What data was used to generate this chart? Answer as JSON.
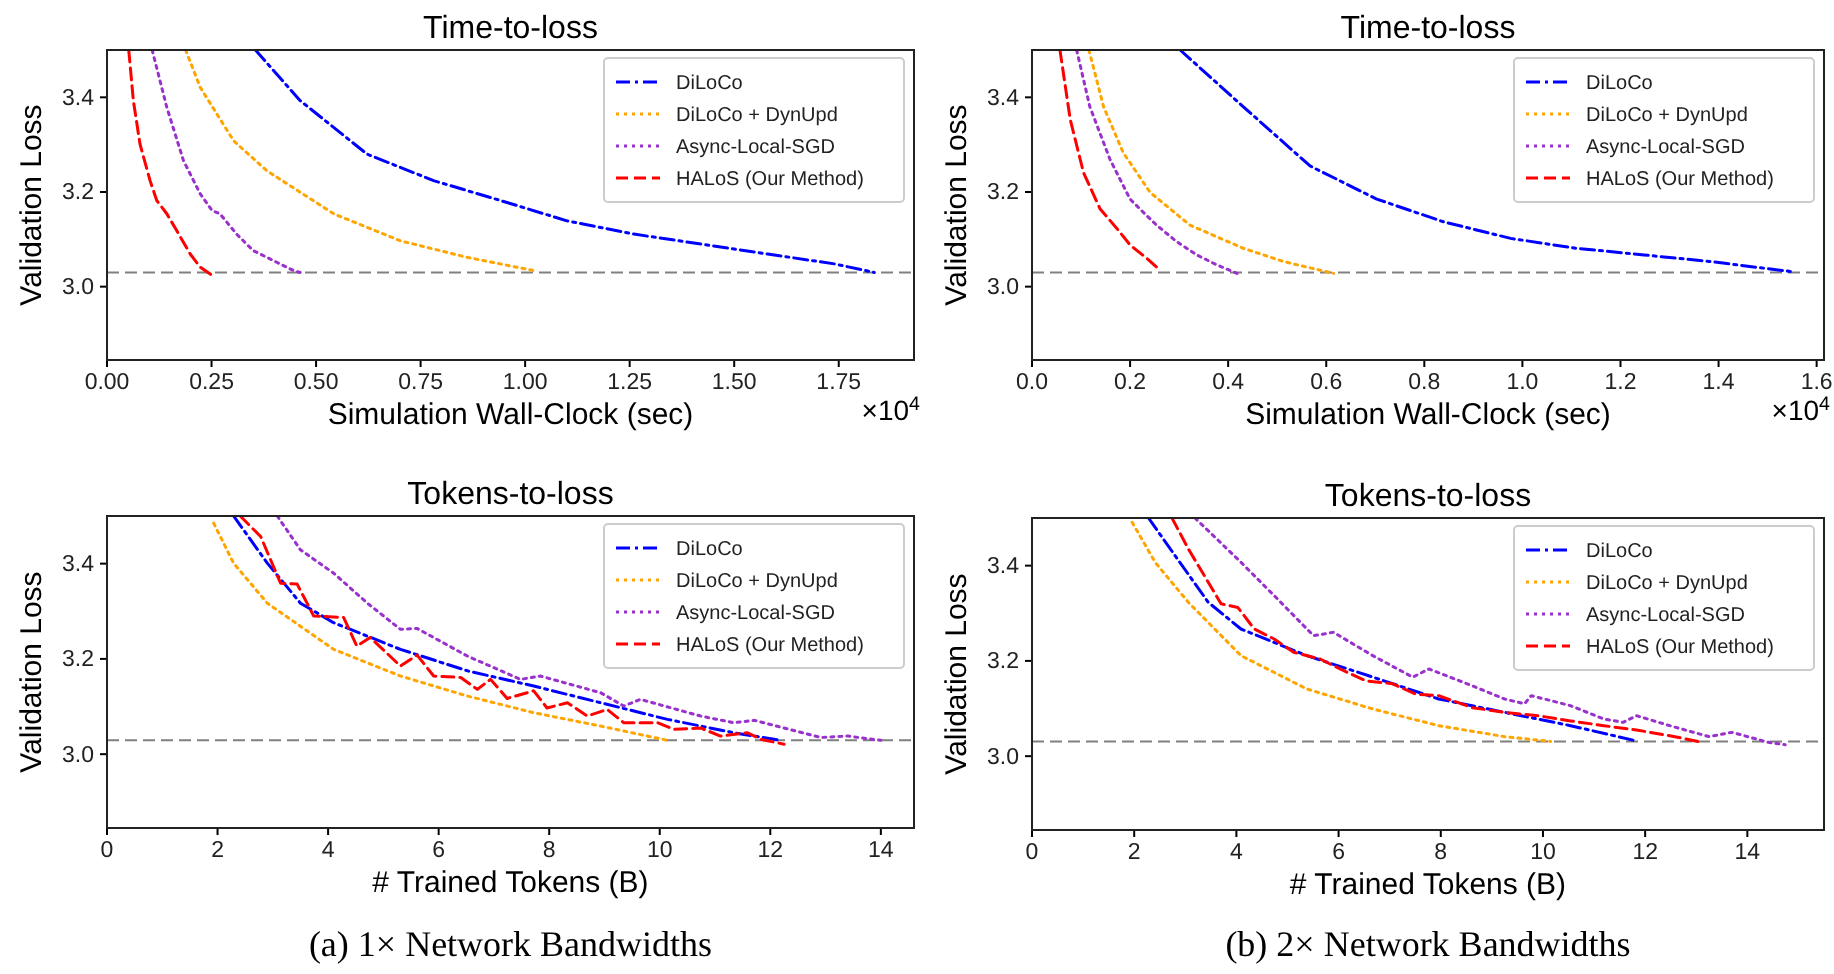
{
  "chart_data": [
    {
      "type": "line",
      "title": "Time-to-loss",
      "xlabel": "Simulation Wall-Clock (sec)",
      "ylabel": "Validation Loss",
      "annotations": [
        "×10$^{4}$"
      ],
      "xlim": [
        0,
        1.93
      ],
      "xticks": [
        {
          "value": 0,
          "label": "0.00"
        },
        {
          "value": 0.25,
          "label": "0.25"
        },
        {
          "value": 0.5,
          "label": "0.50"
        },
        {
          "value": 0.75,
          "label": "0.75"
        },
        {
          "value": 1,
          "label": "1.00"
        },
        {
          "value": 1.25,
          "label": "1.25"
        },
        {
          "value": 1.5,
          "label": "1.50"
        },
        {
          "value": 1.75,
          "label": "1.75"
        }
      ],
      "ylim": [
        2.845,
        3.5
      ],
      "yticks": [
        {
          "value": 3,
          "label": "3.0"
        },
        {
          "value": 3.2,
          "label": "3.2"
        },
        {
          "value": 3.4,
          "label": "3.4"
        }
      ],
      "legend": "top right",
      "grid": false,
      "ref_lines": [
        {
          "axis": "y",
          "value": 3.03,
          "color": "#808080",
          "line_style": "dashed"
        }
      ],
      "series": [
        {
          "name": "DiLoCo",
          "color": "#0000ff",
          "line_style": "dashdot",
          "x": [
            0.355,
            0.462,
            0.622,
            0.781,
            0.941,
            1.1,
            1.26,
            1.42,
            1.58,
            1.74,
            1.835
          ],
          "values": [
            3.5,
            3.393,
            3.28,
            3.224,
            3.182,
            3.139,
            3.111,
            3.09,
            3.069,
            3.048,
            3.03
          ]
        },
        {
          "name": "DiLoCo + DynUpd",
          "color": "#ffa500",
          "line_style": "dotted",
          "x": [
            0.188,
            0.223,
            0.303,
            0.382,
            0.542,
            0.701,
            0.861,
            1.02
          ],
          "values": [
            3.5,
            3.421,
            3.308,
            3.245,
            3.154,
            3.097,
            3.062,
            3.034
          ]
        },
        {
          "name": "Async-Local-SGD",
          "color": "#9932cc",
          "line_style": "dotted",
          "x": [
            0.108,
            0.143,
            0.183,
            0.223,
            0.251,
            0.27,
            0.31,
            0.35,
            0.398,
            0.446,
            0.462
          ],
          "values": [
            3.5,
            3.379,
            3.266,
            3.196,
            3.161,
            3.154,
            3.111,
            3.076,
            3.055,
            3.034,
            3.03
          ]
        },
        {
          "name": "HALoS (Our Method)",
          "color": "#ff0000",
          "line_style": "dashed",
          "x": [
            0.052,
            0.063,
            0.079,
            0.103,
            0.119,
            0.143,
            0.167,
            0.199,
            0.223,
            0.251
          ],
          "values": [
            3.5,
            3.393,
            3.301,
            3.224,
            3.182,
            3.154,
            3.118,
            3.069,
            3.041,
            3.024
          ]
        }
      ]
    },
    {
      "type": "line",
      "title": "Time-to-loss",
      "xlabel": "Simulation Wall-Clock (sec)",
      "ylabel": "Validation Loss",
      "annotations": [
        "×10$^{4}$"
      ],
      "xlim": [
        0,
        1.615
      ],
      "xticks": [
        {
          "value": 0,
          "label": "0.0"
        },
        {
          "value": 0.2,
          "label": "0.2"
        },
        {
          "value": 0.4,
          "label": "0.4"
        },
        {
          "value": 0.6,
          "label": "0.6"
        },
        {
          "value": 0.8,
          "label": "0.8"
        },
        {
          "value": 1,
          "label": "1.0"
        },
        {
          "value": 1.2,
          "label": "1.2"
        },
        {
          "value": 1.4,
          "label": "1.4"
        },
        {
          "value": 1.6,
          "label": "1.6"
        }
      ],
      "ylim": [
        2.845,
        3.5
      ],
      "yticks": [
        {
          "value": 3,
          "label": "3.0"
        },
        {
          "value": 3.2,
          "label": "3.2"
        },
        {
          "value": 3.4,
          "label": "3.4"
        }
      ],
      "legend": "top right",
      "grid": false,
      "ref_lines": [
        {
          "axis": "y",
          "value": 3.03,
          "color": "#808080",
          "line_style": "dashed"
        }
      ],
      "series": [
        {
          "name": "DiLoCo",
          "color": "#0000ff",
          "line_style": "dashdot",
          "x": [
            0.302,
            0.431,
            0.567,
            0.703,
            0.839,
            0.976,
            1.11,
            1.248,
            1.384,
            1.547
          ],
          "values": [
            3.5,
            3.38,
            3.255,
            3.185,
            3.137,
            3.102,
            3.081,
            3.067,
            3.053,
            3.032
          ]
        },
        {
          "name": "DiLoCo + DynUpd",
          "color": "#ffa500",
          "line_style": "dotted",
          "x": [
            0.116,
            0.146,
            0.186,
            0.241,
            0.322,
            0.431,
            0.513,
            0.615
          ],
          "values": [
            3.5,
            3.38,
            3.283,
            3.199,
            3.13,
            3.081,
            3.053,
            3.028
          ]
        },
        {
          "name": "Async-Local-SGD",
          "color": "#9932cc",
          "line_style": "dotted",
          "x": [
            0.091,
            0.118,
            0.159,
            0.2,
            0.227,
            0.254,
            0.295,
            0.336,
            0.377,
            0.418
          ],
          "values": [
            3.5,
            3.38,
            3.269,
            3.185,
            3.157,
            3.13,
            3.095,
            3.067,
            3.046,
            3.028
          ]
        },
        {
          "name": "HALoS (Our Method)",
          "color": "#ff0000",
          "line_style": "dashed",
          "x": [
            0.057,
            0.078,
            0.105,
            0.139,
            0.173,
            0.2,
            0.234,
            0.261
          ],
          "values": [
            3.5,
            3.353,
            3.241,
            3.164,
            3.123,
            3.088,
            3.06,
            3.035
          ]
        }
      ]
    },
    {
      "type": "line",
      "title": "Tokens-to-loss",
      "xlabel": "# Trained Tokens (B)",
      "ylabel": "Validation Loss",
      "annotations": [
        "(a) 1× Network Bandwidths"
      ],
      "xlim": [
        0,
        14.6
      ],
      "xticks": [
        0,
        2,
        4,
        6,
        8,
        10,
        12,
        14
      ],
      "ylim": [
        2.845,
        3.5
      ],
      "yticks": [
        {
          "value": 3,
          "label": "3.0"
        },
        {
          "value": 3.2,
          "label": "3.2"
        },
        {
          "value": 3.4,
          "label": "3.4"
        }
      ],
      "legend": "top right",
      "grid": false,
      "ref_lines": [
        {
          "axis": "y",
          "value": 3.029,
          "color": "#808080",
          "line_style": "dashed"
        }
      ],
      "series": [
        {
          "name": "DiLoCo",
          "color": "#0000ff",
          "line_style": "dashdot",
          "x": [
            2.29,
            2.9,
            3.5,
            4.1,
            5.31,
            6.52,
            7.72,
            8.93,
            10.14,
            11.34,
            12.19
          ],
          "values": [
            3.5,
            3.401,
            3.317,
            3.276,
            3.22,
            3.175,
            3.143,
            3.108,
            3.073,
            3.045,
            3.029
          ]
        },
        {
          "name": "DiLoCo + DynUpd",
          "color": "#ffa500",
          "line_style": "dotted",
          "x": [
            1.93,
            2.29,
            2.9,
            4.1,
            5.31,
            6.52,
            7.72,
            8.93,
            10.14
          ],
          "values": [
            3.485,
            3.401,
            3.317,
            3.22,
            3.164,
            3.122,
            3.087,
            3.059,
            3.029
          ]
        },
        {
          "name": "Async-Local-SGD",
          "color": "#9932cc",
          "line_style": "dotted",
          "x": [
            3.08,
            3.5,
            4.1,
            4.71,
            5.31,
            5.61,
            6.52,
            7.48,
            7.84,
            8.93,
            9.35,
            9.65,
            10.74,
            11.34,
            11.71,
            12.91,
            13.4,
            14.0
          ],
          "values": [
            3.5,
            3.429,
            3.38,
            3.317,
            3.262,
            3.264,
            3.206,
            3.157,
            3.164,
            3.129,
            3.101,
            3.115,
            3.08,
            3.066,
            3.071,
            3.035,
            3.038,
            3.029
          ]
        },
        {
          "name": "HALoS (Our Method)",
          "color": "#ff0000",
          "line_style": "dashed",
          "x": [
            2.41,
            2.78,
            3.14,
            3.44,
            3.74,
            4.28,
            4.52,
            4.76,
            5.31,
            5.61,
            5.91,
            6.4,
            6.7,
            6.94,
            7.24,
            7.72,
            7.96,
            8.33,
            8.69,
            9.05,
            9.35,
            9.96,
            10.26,
            10.74,
            11.1,
            11.59,
            11.83,
            12.25
          ],
          "values": [
            3.5,
            3.457,
            3.359,
            3.357,
            3.29,
            3.287,
            3.227,
            3.245,
            3.185,
            3.208,
            3.164,
            3.161,
            3.136,
            3.157,
            3.117,
            3.133,
            3.097,
            3.108,
            3.08,
            3.094,
            3.066,
            3.066,
            3.052,
            3.055,
            3.038,
            3.045,
            3.031,
            3.021
          ]
        }
      ]
    },
    {
      "type": "line",
      "title": "Tokens-to-loss",
      "xlabel": "# Trained Tokens (B)",
      "ylabel": "Validation Loss",
      "annotations": [
        "(b) 2× Network Bandwidths"
      ],
      "xlim": [
        0,
        15.5
      ],
      "xticks": [
        0,
        2,
        4,
        6,
        8,
        10,
        12,
        14
      ],
      "ylim": [
        2.845,
        3.5
      ],
      "yticks": [
        {
          "value": 3,
          "label": "3.0"
        },
        {
          "value": 3.2,
          "label": "3.2"
        },
        {
          "value": 3.4,
          "label": "3.4"
        }
      ],
      "legend": "top right",
      "grid": false,
      "ref_lines": [
        {
          "axis": "y",
          "value": 3.031,
          "color": "#808080",
          "line_style": "dashed"
        }
      ],
      "series": [
        {
          "name": "DiLoCo",
          "color": "#0000ff",
          "line_style": "dashdot",
          "x": [
            2.28,
            2.8,
            3.45,
            4.09,
            5.38,
            6.67,
            7.96,
            9.25,
            10.54,
            11.83
          ],
          "values": [
            3.5,
            3.421,
            3.323,
            3.267,
            3.211,
            3.166,
            3.12,
            3.092,
            3.064,
            3.032
          ]
        },
        {
          "name": "DiLoCo + DynUpd",
          "color": "#ffa500",
          "line_style": "dotted",
          "x": [
            1.96,
            2.41,
            3.06,
            4.09,
            5.38,
            6.67,
            7.96,
            9.25,
            10.15
          ],
          "values": [
            3.491,
            3.407,
            3.323,
            3.211,
            3.141,
            3.099,
            3.064,
            3.041,
            3.031
          ]
        },
        {
          "name": "Async-Local-SGD",
          "color": "#9932cc",
          "line_style": "dotted",
          "x": [
            3.19,
            4.09,
            4.74,
            5.51,
            5.9,
            6.67,
            7.45,
            7.77,
            8.61,
            9.25,
            9.64,
            9.77,
            10.54,
            11.19,
            11.57,
            11.83,
            12.48,
            13.25,
            13.7,
            14.41,
            14.74
          ],
          "values": [
            3.5,
            3.407,
            3.337,
            3.253,
            3.26,
            3.211,
            3.166,
            3.183,
            3.148,
            3.12,
            3.11,
            3.127,
            3.106,
            3.078,
            3.071,
            3.085,
            3.064,
            3.041,
            3.05,
            3.029,
            3.024
          ]
        },
        {
          "name": "HALoS (Our Method)",
          "color": "#ff0000",
          "line_style": "dashed",
          "x": [
            2.74,
            3.06,
            3.45,
            3.7,
            4.03,
            4.35,
            4.74,
            5.12,
            5.64,
            6.03,
            6.54,
            7.06,
            7.51,
            7.96,
            8.61,
            9.25,
            9.9,
            10.54,
            11.19,
            11.83,
            12.48,
            13.12
          ],
          "values": [
            3.5,
            3.435,
            3.365,
            3.32,
            3.312,
            3.267,
            3.246,
            3.218,
            3.204,
            3.183,
            3.158,
            3.152,
            3.13,
            3.127,
            3.102,
            3.092,
            3.085,
            3.074,
            3.064,
            3.055,
            3.043,
            3.029
          ]
        }
      ]
    }
  ]
}
